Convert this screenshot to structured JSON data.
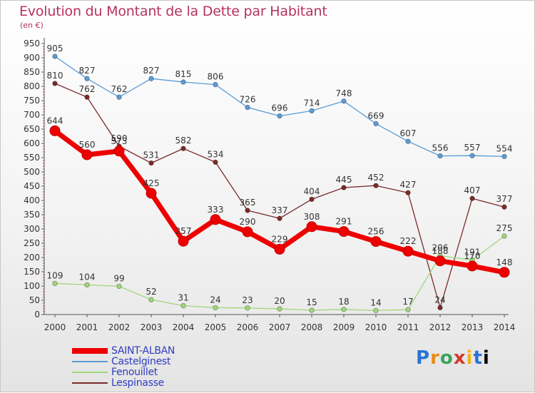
{
  "title": "Evolution du Montant de la Dette par Habitant",
  "subtitle": "(en €)",
  "logo_text": "Proxiti",
  "chart_data": {
    "type": "line",
    "title": "Evolution du Montant de la Dette par Habitant",
    "subtitle": "(en €)",
    "xlabel": "",
    "ylabel": "",
    "x": [
      "2000",
      "2001",
      "2002",
      "2003",
      "2004",
      "2005",
      "2006",
      "2007",
      "2008",
      "2009",
      "2010",
      "2011",
      "2012",
      "2013",
      "2014"
    ],
    "ylim": [
      0,
      950
    ],
    "yticks": [
      "0",
      "50",
      "100",
      "150",
      "200",
      "250",
      "300",
      "350",
      "400",
      "450",
      "500",
      "550",
      "600",
      "650",
      "700",
      "750",
      "800",
      "850",
      "900",
      "950"
    ],
    "grid": false,
    "legend": "bottom-left",
    "series": [
      {
        "name": "SAINT-ALBAN",
        "color": "#ee0000",
        "values": [
          644,
          560,
          573,
          425,
          257,
          333,
          290,
          229,
          308,
          291,
          256,
          222,
          188,
          170,
          148
        ],
        "labels": [
          "644",
          "560",
          "573",
          "425",
          "257",
          "333",
          "290",
          "229",
          "308",
          "291",
          "256",
          "222",
          "188",
          "170",
          "148"
        ]
      },
      {
        "name": "Castelginest",
        "color": "#5b9bd5",
        "values": [
          905,
          827,
          762,
          827,
          815,
          806,
          726,
          696,
          714,
          748,
          669,
          607,
          556,
          557,
          554
        ],
        "labels": [
          "905",
          "827",
          "762",
          "827",
          "815",
          "806",
          "726",
          "696",
          "714",
          "748",
          "669",
          "607",
          "556",
          "557",
          "554"
        ]
      },
      {
        "name": "Fenouillet",
        "color": "#9fd67a",
        "values": [
          109,
          104,
          99,
          52,
          31,
          24,
          23,
          20,
          15,
          18,
          14,
          17,
          206,
          191,
          275
        ],
        "labels": [
          "109",
          "104",
          "99",
          "52",
          "31",
          "24",
          "23",
          "20",
          "15",
          "18",
          "14",
          "17",
          "206",
          "191",
          "275"
        ]
      },
      {
        "name": "Lespinasse",
        "color": "#7b2a2a",
        "values": [
          810,
          762,
          590,
          531,
          582,
          534,
          365,
          337,
          404,
          445,
          452,
          427,
          24,
          407,
          377
        ],
        "labels": [
          "810",
          "762",
          "590",
          "531",
          "582",
          "534",
          "365",
          "337",
          "404",
          "445",
          "452",
          "427",
          "24",
          "407",
          "377"
        ]
      }
    ]
  }
}
